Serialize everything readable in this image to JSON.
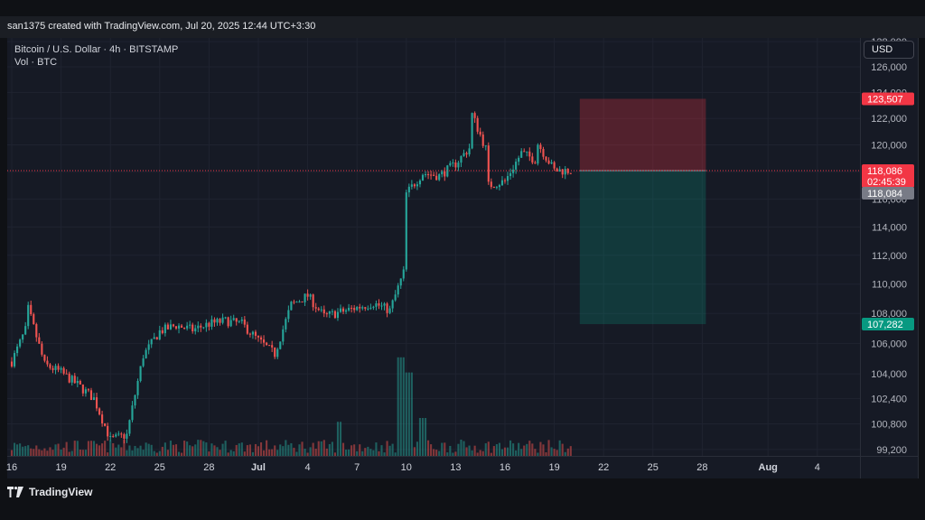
{
  "header": {
    "title": "san1375 created with TradingView.com, Jul 20, 2025 12:44 UTC+3:30"
  },
  "legend": {
    "symbol": "Bitcoin / U.S. Dollar · 4h · BITSTAMP",
    "volume": "Vol · BTC"
  },
  "currency_button": "USD",
  "footer": {
    "brand": "TradingView"
  },
  "colors": {
    "up": "#26a69a",
    "down": "#ef5350",
    "background": "#161a25",
    "grid": "#1f2330"
  },
  "chart_data": {
    "type": "candlestick",
    "y_scale": "log",
    "ylim": [
      98800,
      128300
    ],
    "x_tick_labels": [
      "16",
      "19",
      "22",
      "25",
      "28",
      "Jul",
      "4",
      "7",
      "10",
      "13",
      "16",
      "19",
      "22",
      "25",
      "28",
      "Aug",
      "4"
    ],
    "y_tick_labels": [
      "128,000",
      "126,000",
      "124,000",
      "122,000",
      "120,000",
      "118,000",
      "116,000",
      "114,000",
      "112,000",
      "110,000",
      "108,000",
      "106,000",
      "104,000",
      "102,400",
      "100,800",
      "99,200"
    ],
    "y_tick_values": [
      128000,
      126000,
      124000,
      122000,
      120000,
      118000,
      116000,
      114000,
      112000,
      110000,
      108000,
      106000,
      104000,
      102400,
      100800,
      99200
    ],
    "price_labels": [
      {
        "value": 123507,
        "text": "123,507",
        "color": "#f23645"
      },
      {
        "value": 118086,
        "text": "118,086",
        "sub": "02:45:39",
        "color": "#f23645"
      },
      {
        "value": 118084,
        "text": "118,084",
        "color": "#787b86"
      },
      {
        "value": 107282,
        "text": "107,282",
        "color": "#089981"
      }
    ],
    "current_price": 118086,
    "position": {
      "entry": 118086,
      "stop": 123507,
      "target": 107282,
      "start_date": "Jul 20",
      "end_date": "Jul 28"
    },
    "anchors": [
      {
        "date": "Jun 16",
        "price": 104800
      },
      {
        "date": "Jun 17",
        "price": 107300
      },
      {
        "date": "Jun 17",
        "price": 108300
      },
      {
        "date": "Jun 18",
        "price": 104600
      },
      {
        "date": "Jun 19",
        "price": 104100
      },
      {
        "date": "Jun 20",
        "price": 103300
      },
      {
        "date": "Jun 21",
        "price": 102400
      },
      {
        "date": "Jun 22",
        "price": 99800
      },
      {
        "date": "Jun 23",
        "price": 100100
      },
      {
        "date": "Jun 24",
        "price": 105200
      },
      {
        "date": "Jun 25",
        "price": 106800
      },
      {
        "date": "Jun 26",
        "price": 107200
      },
      {
        "date": "Jun 27",
        "price": 106900
      },
      {
        "date": "Jun 28",
        "price": 107300
      },
      {
        "date": "Jun 29",
        "price": 107500
      },
      {
        "date": "Jun 30",
        "price": 107300
      },
      {
        "date": "Jul 1",
        "price": 106200
      },
      {
        "date": "Jul 2",
        "price": 105300
      },
      {
        "date": "Jul 3",
        "price": 108600
      },
      {
        "date": "Jul 4",
        "price": 109200
      },
      {
        "date": "Jul 5",
        "price": 107800
      },
      {
        "date": "Jul 6",
        "price": 108100
      },
      {
        "date": "Jul 7",
        "price": 108400
      },
      {
        "date": "Jul 8",
        "price": 108700
      },
      {
        "date": "Jul 9",
        "price": 108200
      },
      {
        "date": "Jul 10",
        "price": 111300
      },
      {
        "date": "Jul 10",
        "price": 116400
      },
      {
        "date": "Jul 11",
        "price": 117900
      },
      {
        "date": "Jul 12",
        "price": 117700
      },
      {
        "date": "Jul 13",
        "price": 118600
      },
      {
        "date": "Jul 14",
        "price": 120000
      },
      {
        "date": "Jul 14",
        "price": 122300
      },
      {
        "date": "Jul 15",
        "price": 119200
      },
      {
        "date": "Jul 15",
        "price": 117000
      },
      {
        "date": "Jul 16",
        "price": 117300
      },
      {
        "date": "Jul 17",
        "price": 119400
      },
      {
        "date": "Jul 18",
        "price": 118800
      },
      {
        "date": "Jul 18",
        "price": 120100
      },
      {
        "date": "Jul 19",
        "price": 118100
      },
      {
        "date": "Jul 20",
        "price": 118086
      }
    ]
  }
}
